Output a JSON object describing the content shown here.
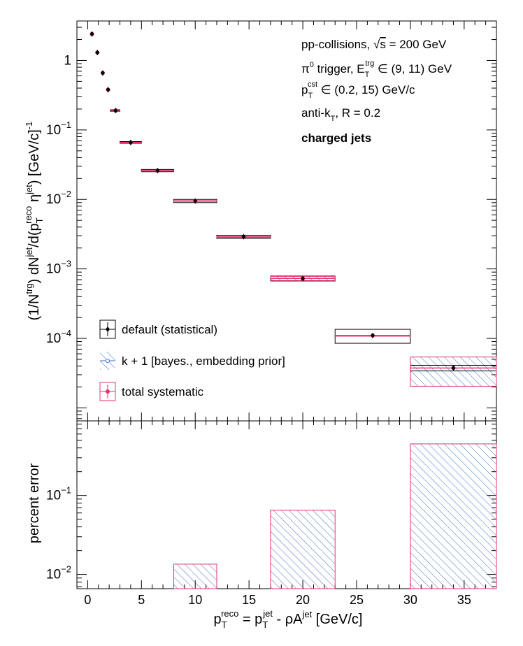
{
  "chart_data": [
    {
      "type": "scatter",
      "panel": "top",
      "ylabel_parts": {
        "a": "(1/N",
        "a_sup": "trg",
        "b": ") dN",
        "b_sup": "jet",
        "c": "/d(p",
        "c_sub": "T",
        "c_sup": "reco",
        "d": " η",
        "d_sup": "jet",
        "e": ") [GeV/c]",
        "e_sup": "-1"
      },
      "yscale": "log",
      "xlim": [
        -1,
        38
      ],
      "ylim": [
        6.5e-06,
        3.7
      ],
      "x_ticks": [
        0,
        5,
        10,
        15,
        20,
        25,
        30,
        35
      ],
      "y_ticks": [
        {
          "value": 1,
          "base": "1",
          "exp": ""
        },
        {
          "value": 0.1,
          "base": "10",
          "exp": "−1"
        },
        {
          "value": 0.01,
          "base": "10",
          "exp": "−2"
        },
        {
          "value": 0.001,
          "base": "10",
          "exp": "−3"
        },
        {
          "value": 0.0001,
          "base": "10",
          "exp": "−4"
        }
      ],
      "annotations": {
        "line1_a": "pp-collisions, ",
        "line1_sqrt": "√",
        "line1_s": "s",
        "line1_b": " = 200 GeV",
        "line2_a": "π",
        "line2_sup0": "0",
        "line2_b": " trigger, E",
        "line2_sub": "T",
        "line2_sup": "trg",
        "line2_c": " ∈ (9, 11) GeV",
        "line3_a": "p",
        "line3_sub": "T",
        "line3_sup": "cst",
        "line3_b": " ∈ (0.2, 15) GeV/c",
        "line4_a": "anti-k",
        "line4_sub": "T",
        "line4_b": ", R = 0.2",
        "line5": "charged jets"
      },
      "legend": [
        "default (statistical)",
        "k + 1 [bayes., embedding prior]",
        "total systematic"
      ],
      "legend_placement": "bottom-left",
      "series": [
        {
          "name": "default (statistical)",
          "x": [
            0.4,
            0.9,
            1.4,
            1.9,
            2.6,
            4.0,
            6.5,
            10.0,
            14.5,
            20.0,
            26.5,
            34.0
          ],
          "xlow": [
            0.4,
            0.9,
            1.4,
            1.9,
            2.1,
            3.0,
            5.0,
            8.0,
            12.0,
            17.0,
            23.0,
            30.0
          ],
          "xhigh": [
            0.4,
            0.9,
            1.4,
            1.9,
            3.0,
            5.0,
            8.0,
            12.0,
            17.0,
            23.0,
            30.0,
            38.0
          ],
          "y": [
            2.4,
            1.3,
            0.66,
            0.38,
            0.19,
            0.066,
            0.026,
            0.0095,
            0.0029,
            0.00073,
            0.00011,
            3.75e-05
          ],
          "stat_low": [
            2.4,
            1.3,
            0.66,
            0.38,
            0.185,
            0.064,
            0.025,
            0.009,
            0.00275,
            0.00067,
            8.5e-05,
            3.4e-05
          ],
          "stat_high": [
            2.4,
            1.3,
            0.66,
            0.38,
            0.195,
            0.068,
            0.027,
            0.01,
            0.00305,
            0.00079,
            0.000135,
            4.1e-05
          ]
        },
        {
          "name": "k + 1 [bayes., embedding prior]",
          "y": [
            2.4,
            1.3,
            0.66,
            0.38,
            0.19,
            0.066,
            0.026,
            0.0095,
            0.0029,
            0.00073,
            0.00011,
            3.75e-05
          ],
          "sys_low": [
            2.4,
            1.3,
            0.66,
            0.38,
            0.19,
            0.066,
            0.026,
            0.0094,
            0.0029,
            0.00068,
            0.00011,
            2.05e-05
          ],
          "sys_high": [
            2.4,
            1.3,
            0.66,
            0.38,
            0.19,
            0.066,
            0.026,
            0.0096,
            0.0029,
            0.00078,
            0.00011,
            5.4e-05
          ]
        },
        {
          "name": "total systematic",
          "y": [
            2.4,
            1.3,
            0.66,
            0.38,
            0.19,
            0.066,
            0.026,
            0.0095,
            0.0029,
            0.00073,
            0.00011,
            3.75e-05
          ],
          "sys_low": [
            2.4,
            1.3,
            0.66,
            0.38,
            0.19,
            0.066,
            0.026,
            0.0094,
            0.0029,
            0.00068,
            0.00011,
            2.05e-05
          ],
          "sys_high": [
            2.4,
            1.3,
            0.66,
            0.38,
            0.19,
            0.066,
            0.026,
            0.0096,
            0.0029,
            0.00078,
            0.00011,
            5.4e-05
          ]
        }
      ],
      "colors": {
        "total_systematic": "#e8316f",
        "bayes_hatch": "#3d6fc4",
        "stat": "#000000"
      }
    },
    {
      "type": "bar",
      "panel": "bottom",
      "ylabel": "percent error",
      "xlabel_parts": {
        "a": "p",
        "a_sub": "T",
        "a_sup": "reco",
        "b": " = p",
        "b_sub": "T",
        "b_sup": "jet",
        "c": " - ρA",
        "c_sup": "jet",
        "d": " [GeV/c]"
      },
      "yscale": "log",
      "xlim": [
        -1,
        38
      ],
      "ylim": [
        0.0066,
        0.88
      ],
      "x_tick_labels": [
        "0",
        "5",
        "10",
        "15",
        "20",
        "25",
        "30",
        "35"
      ],
      "y_ticks": [
        {
          "value": 0.1,
          "base": "10",
          "exp": "−1"
        },
        {
          "value": 0.01,
          "base": "10",
          "exp": "−2"
        }
      ],
      "bins": [
        {
          "xlow": 8.0,
          "xhigh": 12.0,
          "value": 0.0135
        },
        {
          "xlow": 17.0,
          "xhigh": 23.0,
          "value": 0.065
        },
        {
          "xlow": 30.0,
          "xhigh": 38.0,
          "value": 0.45
        }
      ]
    }
  ]
}
